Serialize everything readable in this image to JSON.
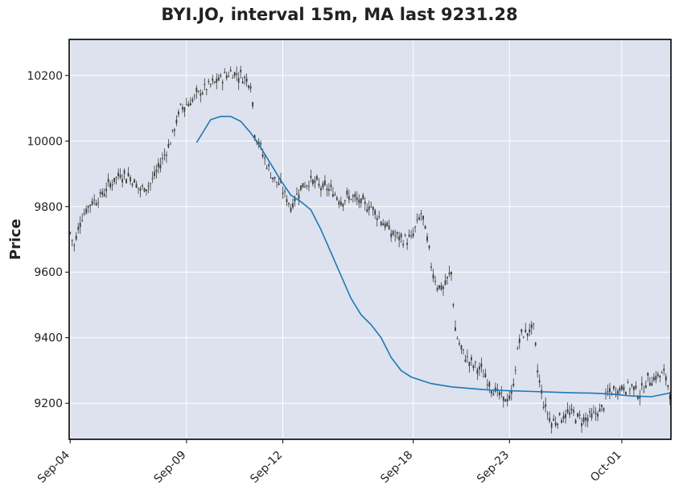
{
  "chart_data": {
    "type": "candlestick",
    "title": "BYI.JO, interval 15m, MA last 9231.28",
    "xlabel": "",
    "ylabel": "Price",
    "ylim": [
      9090,
      10310
    ],
    "y_ticks": [
      9200,
      9400,
      9600,
      9800,
      10000,
      10200
    ],
    "x_ticks": [
      "Sep-04",
      "Sep-09",
      "Sep-12",
      "Sep-18",
      "Sep-23",
      "Oct-01"
    ],
    "grid": true,
    "ma_last": 9231.28,
    "colors": {
      "background": "#dde2ee",
      "candle": "#3a3a3a",
      "ma_line": "#1f77b4",
      "grid": "#ffffff"
    },
    "price_path": [
      [
        0,
        9720
      ],
      [
        2,
        9680
      ],
      [
        5,
        9760
      ],
      [
        10,
        9810
      ],
      [
        15,
        9830
      ],
      [
        20,
        9870
      ],
      [
        25,
        9900
      ],
      [
        30,
        9890
      ],
      [
        35,
        9850
      ],
      [
        40,
        9870
      ],
      [
        45,
        9930
      ],
      [
        50,
        10000
      ],
      [
        55,
        10100
      ],
      [
        60,
        10120
      ],
      [
        65,
        10150
      ],
      [
        70,
        10170
      ],
      [
        75,
        10190
      ],
      [
        80,
        10210
      ],
      [
        85,
        10200
      ],
      [
        90,
        10180
      ],
      [
        92,
        10030
      ],
      [
        96,
        9960
      ],
      [
        100,
        9900
      ],
      [
        105,
        9860
      ],
      [
        110,
        9800
      ],
      [
        115,
        9860
      ],
      [
        120,
        9880
      ],
      [
        125,
        9860
      ],
      [
        130,
        9850
      ],
      [
        135,
        9820
      ],
      [
        140,
        9830
      ],
      [
        145,
        9810
      ],
      [
        150,
        9800
      ],
      [
        155,
        9760
      ],
      [
        160,
        9720
      ],
      [
        165,
        9700
      ],
      [
        170,
        9700
      ],
      [
        175,
        9780
      ],
      [
        178,
        9700
      ],
      [
        180,
        9620
      ],
      [
        183,
        9560
      ],
      [
        186,
        9550
      ],
      [
        190,
        9600
      ],
      [
        192,
        9420
      ],
      [
        195,
        9360
      ],
      [
        200,
        9320
      ],
      [
        205,
        9300
      ],
      [
        210,
        9250
      ],
      [
        213,
        9230
      ],
      [
        216,
        9210
      ],
      [
        220,
        9220
      ],
      [
        224,
        9400
      ],
      [
        228,
        9420
      ],
      [
        231,
        9430
      ],
      [
        233,
        9300
      ],
      [
        236,
        9200
      ],
      [
        240,
        9140
      ],
      [
        245,
        9160
      ],
      [
        250,
        9170
      ],
      [
        255,
        9150
      ],
      [
        260,
        9160
      ],
      [
        265,
        9180
      ],
      [
        268,
        9230
      ],
      [
        272,
        9240
      ],
      [
        276,
        9250
      ],
      [
        280,
        9250
      ],
      [
        284,
        9230
      ],
      [
        288,
        9270
      ],
      [
        292,
        9280
      ],
      [
        296,
        9290
      ],
      [
        299,
        9240
      ]
    ],
    "ma_path": [
      [
        63,
        9995
      ],
      [
        70,
        10065
      ],
      [
        75,
        10075
      ],
      [
        80,
        10075
      ],
      [
        85,
        10060
      ],
      [
        90,
        10025
      ],
      [
        95,
        9980
      ],
      [
        100,
        9930
      ],
      [
        105,
        9880
      ],
      [
        110,
        9835
      ],
      [
        115,
        9815
      ],
      [
        120,
        9790
      ],
      [
        125,
        9730
      ],
      [
        130,
        9660
      ],
      [
        135,
        9590
      ],
      [
        140,
        9520
      ],
      [
        145,
        9470
      ],
      [
        150,
        9440
      ],
      [
        155,
        9400
      ],
      [
        160,
        9340
      ],
      [
        165,
        9300
      ],
      [
        170,
        9280
      ],
      [
        175,
        9270
      ],
      [
        180,
        9260
      ],
      [
        190,
        9250
      ],
      [
        200,
        9245
      ],
      [
        210,
        9240
      ],
      [
        220,
        9238
      ],
      [
        230,
        9236
      ],
      [
        240,
        9234
      ],
      [
        250,
        9232
      ],
      [
        260,
        9231
      ],
      [
        270,
        9228
      ],
      [
        280,
        9222
      ],
      [
        290,
        9220
      ],
      [
        299,
        9231.28
      ]
    ],
    "ma_start_offset": 0
  }
}
